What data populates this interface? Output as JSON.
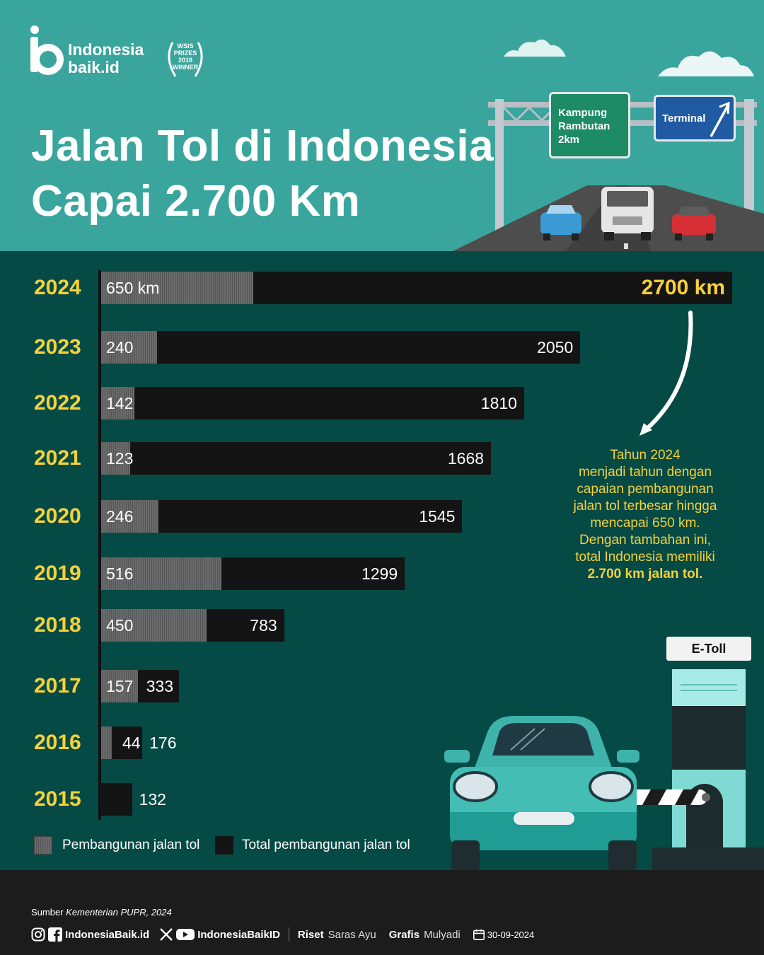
{
  "brand": {
    "line1": "Indonesia",
    "line2": "baik.id",
    "award_lines": [
      "WSIS",
      "PRIZES",
      "2018",
      "WINNER"
    ]
  },
  "title": {
    "line1": "Jalan Tol di Indonesia",
    "line2": "Capai 2.700 Km"
  },
  "signs": {
    "green": [
      "Kampung",
      "Rambutan",
      "2km"
    ],
    "blue": "Terminal",
    "toll_booth": "E-Toll"
  },
  "chart_data": {
    "type": "bar",
    "orientation": "horizontal",
    "categories": [
      "2024",
      "2023",
      "2022",
      "2021",
      "2020",
      "2019",
      "2018",
      "2017",
      "2016",
      "2015"
    ],
    "series": [
      {
        "name": "Pembangunan jalan tol",
        "values": [
          650,
          240,
          142,
          123,
          246,
          516,
          450,
          157,
          44,
          null
        ]
      },
      {
        "name": "Total pembangunan jalan tol",
        "values": [
          2700,
          2050,
          1810,
          1668,
          1545,
          1299,
          783,
          333,
          176,
          132
        ]
      }
    ],
    "new_labels": [
      "650 km",
      "240",
      "142",
      "123",
      "246",
      "516",
      "450",
      "157",
      "44",
      ""
    ],
    "total_labels": [
      "2700 km",
      "2050",
      "1810",
      "1668",
      "1545",
      "1299",
      "783",
      "333",
      "176",
      "132"
    ],
    "annotation": {
      "lines": [
        "Tahun 2024",
        "menjadi tahun dengan",
        "capaian pembangunan",
        "jalan tol terbesar hingga",
        "mencapai 650 km.",
        "Dengan tambahan ini,",
        "total Indonesia memiliki"
      ],
      "bold": "2.700 km jalan tol."
    },
    "legend": [
      "Pembangunan jalan tol",
      "Total pembangunan jalan tol"
    ],
    "colors": {
      "new": "#5f5f5f",
      "total": "#141414",
      "year": "#f5d13a"
    }
  },
  "footer": {
    "source_prefix": "Sumber",
    "source_name": "Kementerian PUPR, 2024",
    "handle1": "IndonesiaBaik.id",
    "handle2": "IndonesiaBaikID",
    "riset_label": "Riset",
    "riset_name": "Saras Ayu",
    "grafis_label": "Grafis",
    "grafis_name": "Mulyadi",
    "date": "30-09-2024"
  }
}
